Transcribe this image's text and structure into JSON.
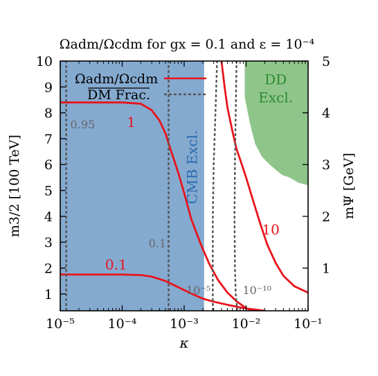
{
  "chart_data": {
    "type": "line",
    "title": "Ωadm/Ωcdm for gx = 0.1 and ε = 10⁻⁴",
    "xlabel": "κ",
    "ylabel_left": "m3/2 [100 TeV]",
    "ylabel_right": "mΨ [GeV]",
    "xscale": "log",
    "xlim": [
      1e-05,
      0.1
    ],
    "ylim": [
      0.35,
      10
    ],
    "y2lim": [
      0.175,
      5
    ],
    "x_ticks": [
      1e-05,
      0.0001,
      0.001,
      0.01,
      0.1
    ],
    "x_tick_labels": [
      "10⁻⁵",
      "10⁻⁴",
      "10⁻³",
      "10⁻²",
      "10⁻¹"
    ],
    "y_ticks": [
      1,
      2,
      3,
      4,
      5,
      6,
      7,
      8,
      9,
      10
    ],
    "y_tick_labels": [
      "1",
      "2",
      "3",
      "4",
      "5",
      "6",
      "7",
      "8",
      "9",
      "10"
    ],
    "y2_ticks": [
      1,
      2,
      3,
      4,
      5
    ],
    "y2_tick_labels": [
      "1",
      "2",
      "3",
      "4",
      "5"
    ],
    "legend": {
      "placement": "top-left",
      "entries": [
        {
          "label": "Ωadm/Ωcdm",
          "style": "solid",
          "color": "#e8141b"
        },
        {
          "label": "DM Frac.",
          "style": "dashed",
          "color": "#555555"
        }
      ]
    },
    "regions": [
      {
        "label": "CMB Excl.",
        "color": "#85aad0",
        "text_color": "#2a6ab0",
        "x_range": [
          1e-05,
          0.0021
        ],
        "y_range": [
          0.35,
          10
        ]
      },
      {
        "label_lines": [
          "DD",
          "Excl."
        ],
        "color": "#8fc58b",
        "text_color": "#2e8b2e",
        "boundary": [
          [
            0.0095,
            10
          ],
          [
            0.0095,
            8.6
          ],
          [
            0.0115,
            7.6
          ],
          [
            0.014,
            6.8
          ],
          [
            0.018,
            6.3
          ],
          [
            0.024,
            6.0
          ],
          [
            0.03,
            5.8
          ],
          [
            0.038,
            5.6
          ],
          [
            0.05,
            5.5
          ],
          [
            0.07,
            5.3
          ],
          [
            0.1,
            5.2
          ],
          [
            0.1,
            10
          ]
        ]
      }
    ],
    "series": [
      {
        "name": "1",
        "style": "solid",
        "color": "#e8141b",
        "points": [
          [
            1e-05,
            8.4
          ],
          [
            0.0001,
            8.4
          ],
          [
            0.0002,
            8.35
          ],
          [
            0.0003,
            8.1
          ],
          [
            0.0004,
            7.7
          ],
          [
            0.0005,
            7.2
          ],
          [
            0.0006,
            6.6
          ],
          [
            0.0008,
            5.7
          ],
          [
            0.001,
            4.9
          ],
          [
            0.0013,
            3.9
          ],
          [
            0.0018,
            3.0
          ],
          [
            0.0025,
            2.2
          ],
          [
            0.0035,
            1.55
          ],
          [
            0.005,
            1.05
          ],
          [
            0.007,
            0.72
          ],
          [
            0.01,
            0.45
          ],
          [
            0.0125,
            0.35
          ]
        ]
      },
      {
        "name": "10",
        "style": "solid",
        "color": "#e8141b",
        "points": [
          [
            0.004,
            10
          ],
          [
            0.0045,
            9.0
          ],
          [
            0.005,
            8.2
          ],
          [
            0.006,
            7.3
          ],
          [
            0.007,
            6.6
          ],
          [
            0.008,
            6.2
          ],
          [
            0.01,
            5.5
          ],
          [
            0.013,
            4.6
          ],
          [
            0.017,
            3.7
          ],
          [
            0.022,
            2.9
          ],
          [
            0.03,
            2.2
          ],
          [
            0.04,
            1.7
          ],
          [
            0.06,
            1.3
          ],
          [
            0.1,
            1.05
          ]
        ]
      },
      {
        "name": "0.1",
        "style": "solid",
        "color": "#e8141b",
        "points": [
          [
            1e-05,
            1.75
          ],
          [
            0.0001,
            1.75
          ],
          [
            0.0002,
            1.73
          ],
          [
            0.0003,
            1.67
          ],
          [
            0.0005,
            1.5
          ],
          [
            0.0007,
            1.33
          ],
          [
            0.001,
            1.15
          ],
          [
            0.0015,
            0.95
          ],
          [
            0.002,
            0.82
          ],
          [
            0.003,
            0.7
          ],
          [
            0.005,
            0.58
          ],
          [
            0.008,
            0.48
          ],
          [
            0.01,
            0.44
          ],
          [
            0.02,
            0.35
          ]
        ]
      },
      {
        "name": "0.95",
        "style": "dashed",
        "color": "#555555",
        "points": [
          [
            1.25e-05,
            0.35
          ],
          [
            1.25e-05,
            10
          ]
        ]
      },
      {
        "name": "0.1",
        "style": "dashed",
        "color": "#555555",
        "points": [
          [
            0.00056,
            0.35
          ],
          [
            0.00056,
            10
          ]
        ]
      },
      {
        "name": "10⁻⁵",
        "style": "dashed",
        "color": "#555555",
        "points": [
          [
            0.0029,
            0.35
          ],
          [
            0.0029,
            4.0
          ],
          [
            0.003,
            6.0
          ],
          [
            0.0032,
            8.0
          ],
          [
            0.0034,
            10
          ]
        ]
      },
      {
        "name": "10⁻¹⁰",
        "style": "dashed",
        "color": "#555555",
        "points": [
          [
            0.0072,
            0.35
          ],
          [
            0.0068,
            1.0
          ],
          [
            0.0066,
            2.0
          ],
          [
            0.0065,
            4.0
          ],
          [
            0.0066,
            6.0
          ],
          [
            0.0068,
            8.0
          ],
          [
            0.007,
            10
          ]
        ]
      }
    ],
    "annotations": [
      {
        "text": "1",
        "x": 0.00014,
        "y": 7.45,
        "color": "#e8141b"
      },
      {
        "text": "10",
        "x": 0.025,
        "y": 3.3,
        "color": "#e8141b"
      },
      {
        "text": "0.1",
        "x": 8e-05,
        "y": 1.95,
        "color": "#e8141b"
      },
      {
        "text": "0.95",
        "x": 2.3e-05,
        "y": 7.4,
        "color": "#666666"
      },
      {
        "text": "0.1",
        "x": 0.00037,
        "y": 2.8,
        "color": "#666666"
      },
      {
        "text": "10⁻⁵",
        "x": 0.0017,
        "y": 1.0,
        "color": "#666666"
      },
      {
        "text": "10⁻¹⁰",
        "x": 0.015,
        "y": 1.0,
        "color": "#666666"
      }
    ]
  }
}
